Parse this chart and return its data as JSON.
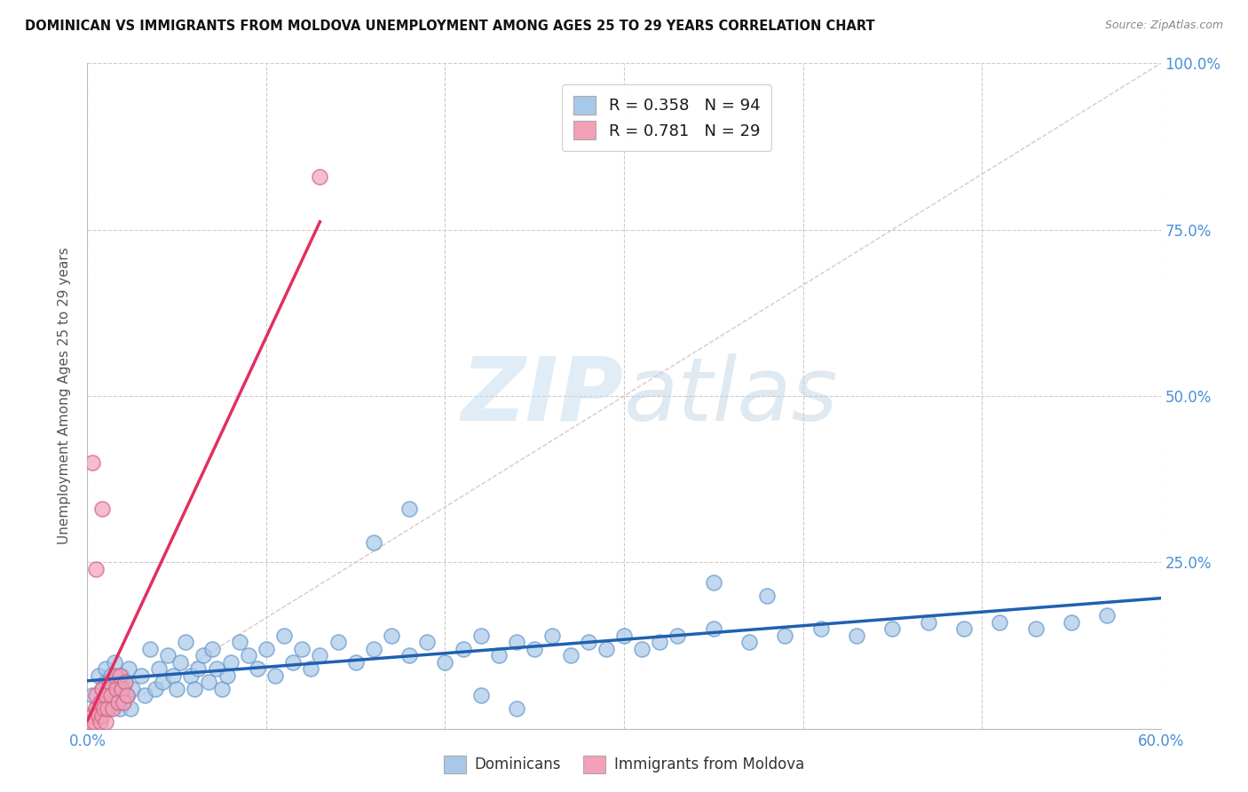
{
  "title": "DOMINICAN VS IMMIGRANTS FROM MOLDOVA UNEMPLOYMENT AMONG AGES 25 TO 29 YEARS CORRELATION CHART",
  "source": "Source: ZipAtlas.com",
  "ylabel": "Unemployment Among Ages 25 to 29 years",
  "xlim": [
    0.0,
    0.6
  ],
  "ylim": [
    0.0,
    1.0
  ],
  "xticks": [
    0.0,
    0.1,
    0.2,
    0.3,
    0.4,
    0.5,
    0.6
  ],
  "xticklabels": [
    "0.0%",
    "",
    "",
    "",
    "",
    "",
    "60.0%"
  ],
  "yticks_right": [
    0.0,
    0.25,
    0.5,
    0.75,
    1.0
  ],
  "yticklabels_right": [
    "",
    "25.0%",
    "50.0%",
    "75.0%",
    "100.0%"
  ],
  "blue_R": 0.358,
  "blue_N": 94,
  "pink_R": 0.781,
  "pink_N": 29,
  "blue_color": "#a8c8e8",
  "pink_color": "#f4a0b8",
  "blue_line_color": "#2060b0",
  "pink_line_color": "#e03060",
  "diagonal_color": "#d8c0c8",
  "tick_color": "#4a90d9",
  "legend_labels": [
    "Dominicans",
    "Immigrants from Moldova"
  ],
  "blue_x": [
    0.003,
    0.005,
    0.006,
    0.007,
    0.008,
    0.009,
    0.01,
    0.01,
    0.011,
    0.012,
    0.013,
    0.014,
    0.015,
    0.015,
    0.016,
    0.017,
    0.018,
    0.019,
    0.02,
    0.02,
    0.021,
    0.022,
    0.023,
    0.024,
    0.025,
    0.03,
    0.032,
    0.035,
    0.038,
    0.04,
    0.042,
    0.045,
    0.048,
    0.05,
    0.052,
    0.055,
    0.058,
    0.06,
    0.062,
    0.065,
    0.068,
    0.07,
    0.072,
    0.075,
    0.078,
    0.08,
    0.085,
    0.09,
    0.095,
    0.1,
    0.105,
    0.11,
    0.115,
    0.12,
    0.125,
    0.13,
    0.14,
    0.15,
    0.16,
    0.17,
    0.18,
    0.19,
    0.2,
    0.21,
    0.22,
    0.23,
    0.24,
    0.25,
    0.26,
    0.27,
    0.28,
    0.29,
    0.3,
    0.31,
    0.32,
    0.33,
    0.35,
    0.37,
    0.39,
    0.41,
    0.43,
    0.45,
    0.47,
    0.49,
    0.51,
    0.53,
    0.55,
    0.57,
    0.35,
    0.38,
    0.22,
    0.24,
    0.16,
    0.18
  ],
  "blue_y": [
    0.05,
    0.03,
    0.08,
    0.02,
    0.06,
    0.04,
    0.07,
    0.09,
    0.05,
    0.03,
    0.08,
    0.06,
    0.04,
    0.1,
    0.07,
    0.05,
    0.03,
    0.08,
    0.06,
    0.04,
    0.07,
    0.05,
    0.09,
    0.03,
    0.06,
    0.08,
    0.05,
    0.12,
    0.06,
    0.09,
    0.07,
    0.11,
    0.08,
    0.06,
    0.1,
    0.13,
    0.08,
    0.06,
    0.09,
    0.11,
    0.07,
    0.12,
    0.09,
    0.06,
    0.08,
    0.1,
    0.13,
    0.11,
    0.09,
    0.12,
    0.08,
    0.14,
    0.1,
    0.12,
    0.09,
    0.11,
    0.13,
    0.1,
    0.12,
    0.14,
    0.11,
    0.13,
    0.1,
    0.12,
    0.14,
    0.11,
    0.13,
    0.12,
    0.14,
    0.11,
    0.13,
    0.12,
    0.14,
    0.12,
    0.13,
    0.14,
    0.15,
    0.13,
    0.14,
    0.15,
    0.14,
    0.15,
    0.16,
    0.15,
    0.16,
    0.15,
    0.16,
    0.17,
    0.22,
    0.2,
    0.05,
    0.03,
    0.28,
    0.33
  ],
  "pink_x": [
    0.002,
    0.003,
    0.004,
    0.005,
    0.005,
    0.006,
    0.007,
    0.007,
    0.008,
    0.008,
    0.009,
    0.01,
    0.01,
    0.011,
    0.012,
    0.013,
    0.014,
    0.015,
    0.016,
    0.017,
    0.018,
    0.019,
    0.02,
    0.021,
    0.022,
    0.005,
    0.008,
    0.13,
    0.003
  ],
  "pink_y": [
    0.01,
    0.02,
    0.01,
    0.03,
    0.05,
    0.02,
    0.01,
    0.04,
    0.02,
    0.06,
    0.03,
    0.01,
    0.05,
    0.03,
    0.07,
    0.05,
    0.03,
    0.08,
    0.06,
    0.04,
    0.08,
    0.06,
    0.04,
    0.07,
    0.05,
    0.24,
    0.33,
    0.83,
    0.4
  ]
}
